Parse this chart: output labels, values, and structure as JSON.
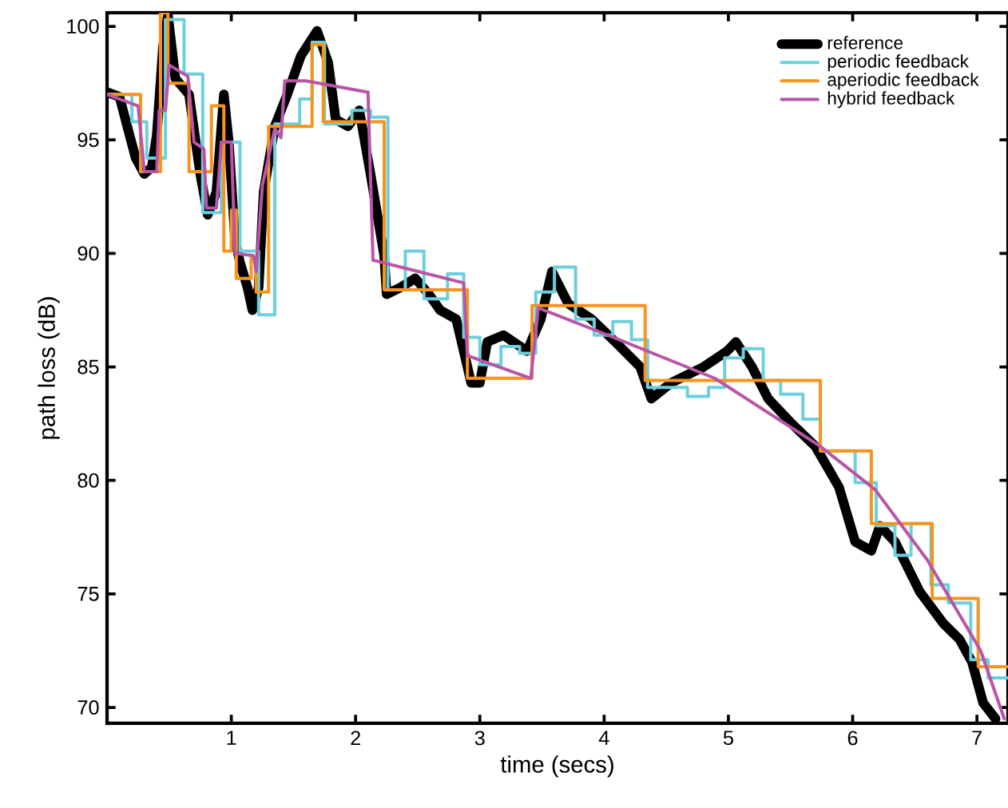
{
  "chart_data": {
    "type": "line",
    "xlabel": "time (secs)",
    "ylabel": "path loss (dB)",
    "xlim": [
      0,
      7.25
    ],
    "ylim": [
      69.3,
      100.6
    ],
    "xticks": [
      1,
      2,
      3,
      4,
      5,
      6,
      7
    ],
    "yticks": [
      70,
      75,
      80,
      85,
      90,
      95,
      100
    ],
    "legend": "top right",
    "grid": false,
    "marker": "none",
    "line_style": "solid",
    "series": [
      {
        "name": "reference",
        "color": "#000000",
        "x": [
          0,
          0.1,
          0.23,
          0.3,
          0.36,
          0.4,
          0.45,
          0.49,
          0.55,
          0.66,
          0.75,
          0.81,
          0.88,
          0.94,
          0.98,
          1.03,
          1.07,
          1.13,
          1.17,
          1.22,
          1.26,
          1.35,
          1.45,
          1.56,
          1.69,
          1.78,
          1.84,
          1.94,
          2.03,
          2.12,
          2.23,
          2.25,
          2.36,
          2.48,
          2.59,
          2.68,
          2.81,
          2.93,
          3.0,
          3.06,
          3.19,
          3.38,
          3.49,
          3.58,
          3.71,
          3.9,
          4.09,
          4.29,
          4.38,
          4.54,
          4.8,
          4.99,
          5.06,
          5.19,
          5.32,
          5.51,
          5.7,
          5.89,
          6.02,
          6.15,
          6.22,
          6.34,
          6.54,
          6.73,
          6.86,
          6.96,
          7.05,
          7.15
        ],
        "values": [
          97.1,
          96.9,
          94.2,
          93.5,
          93.8,
          95.2,
          99.1,
          100.5,
          97.7,
          97.0,
          93.5,
          91.7,
          92.7,
          97.0,
          94.9,
          90.6,
          89.6,
          88.5,
          87.5,
          88.5,
          92.7,
          95.6,
          97.0,
          98.7,
          99.8,
          98.4,
          95.9,
          95.6,
          96.3,
          93.5,
          89.9,
          88.2,
          88.5,
          88.9,
          88.2,
          87.5,
          87.1,
          84.3,
          84.3,
          86.1,
          86.4,
          85.7,
          87.1,
          89.2,
          87.8,
          87.1,
          86.1,
          85.0,
          83.6,
          84.3,
          85.0,
          85.7,
          86.1,
          85.0,
          83.6,
          82.5,
          81.5,
          79.7,
          77.3,
          76.9,
          78.0,
          77.3,
          75.1,
          73.7,
          73.0,
          72.0,
          70.2,
          69.5
        ]
      },
      {
        "name": "periodic feedback",
        "type": "step",
        "color": "#6ccfdc",
        "x": [
          0,
          0.2,
          0.32,
          0.47,
          0.62,
          0.77,
          0.92,
          1.07,
          1.22,
          1.35,
          1.55,
          1.65,
          1.75,
          1.97,
          2.12,
          2.26,
          2.4,
          2.55,
          2.74,
          2.87,
          3.0,
          3.17,
          3.32,
          3.45,
          3.6,
          3.77,
          3.92,
          4.07,
          4.22,
          4.35,
          4.54,
          4.67,
          4.84,
          4.97,
          5.12,
          5.28,
          5.42,
          5.6,
          5.74,
          6.02,
          6.19,
          6.34,
          6.47,
          6.63,
          6.77,
          6.95,
          7.09,
          7.25
        ],
        "values": [
          97.0,
          95.8,
          94.2,
          100.3,
          97.9,
          91.8,
          94.9,
          90.1,
          87.3,
          95.7,
          96.8,
          99.3,
          95.7,
          96.3,
          96.0,
          88.4,
          90.1,
          88.0,
          89.1,
          86.3,
          85.1,
          85.9,
          85.6,
          88.3,
          89.4,
          87.1,
          86.4,
          87.0,
          86.2,
          84.1,
          84.1,
          83.7,
          84.1,
          85.4,
          85.8,
          84.4,
          83.8,
          82.7,
          81.3,
          79.9,
          78.0,
          76.7,
          78.1,
          75.4,
          74.6,
          72.1,
          71.3,
          71.3
        ]
      },
      {
        "name": "aperiodic feedback",
        "type": "step",
        "color": "#f7941d",
        "x": [
          0,
          0.27,
          0.43,
          0.49,
          0.66,
          0.84,
          0.94,
          1.0,
          1.04,
          1.16,
          1.2,
          1.3,
          1.65,
          1.74,
          2.23,
          2.9,
          3.42,
          4.33,
          4.9,
          5.74,
          6.15,
          6.64,
          7.01,
          7.25
        ],
        "values": [
          97.0,
          93.6,
          100.6,
          97.5,
          93.6,
          96.5,
          90.1,
          91.9,
          88.9,
          89.8,
          88.3,
          95.6,
          99.2,
          95.8,
          88.4,
          84.5,
          87.7,
          84.4,
          84.4,
          81.3,
          78.1,
          74.8,
          71.8,
          71.8
        ]
      },
      {
        "name": "hybrid feedback",
        "color": "#b955a6",
        "x": [
          0,
          0.25,
          0.3,
          0.4,
          0.42,
          0.47,
          0.5,
          0.65,
          0.7,
          0.78,
          0.8,
          0.88,
          0.92,
          1.0,
          1.03,
          1.18,
          1.2,
          1.25,
          1.35,
          1.4,
          1.43,
          1.6,
          2.1,
          2.14,
          2.87,
          2.9,
          3.41,
          3.47,
          4.03,
          4.89,
          5.74,
          6.18,
          6.6,
          7.03,
          7.22
        ],
        "values": [
          97.0,
          96.5,
          93.6,
          93.6,
          96.3,
          96.3,
          98.3,
          97.8,
          94.9,
          94.6,
          92.0,
          92.0,
          94.9,
          94.9,
          90.0,
          89.9,
          89.2,
          93.0,
          95.5,
          95.1,
          97.6,
          97.6,
          97.1,
          89.7,
          88.7,
          85.5,
          84.5,
          87.6,
          86.4,
          84.5,
          81.5,
          79.6,
          76.5,
          72.5,
          69.5
        ]
      }
    ]
  }
}
